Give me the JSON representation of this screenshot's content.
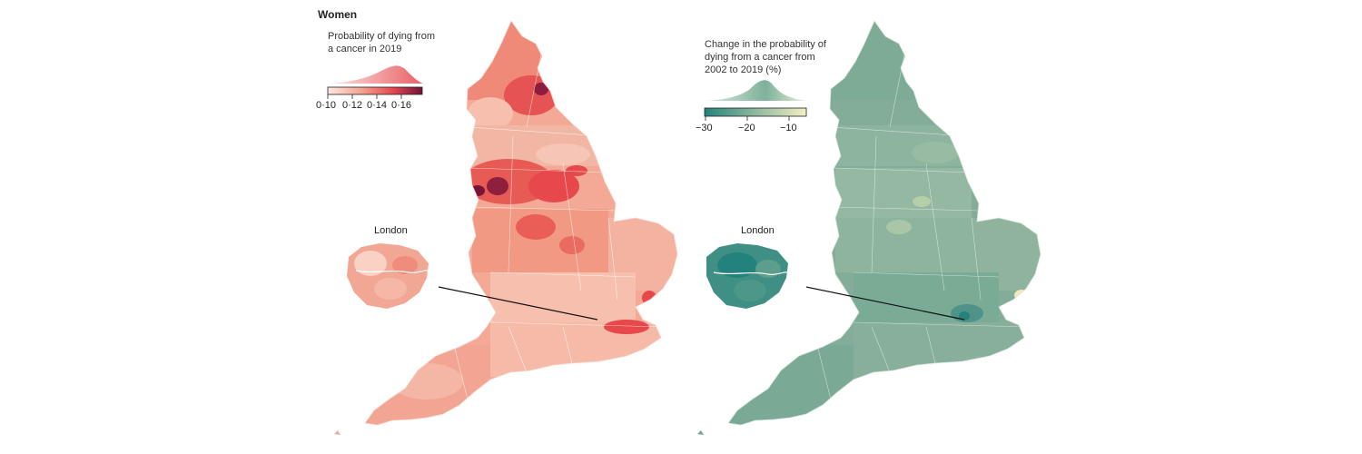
{
  "figure": {
    "title": "Women"
  },
  "left_map": {
    "legend_title_line1": "Probability of dying from",
    "legend_title_line2": "a cancer in 2019",
    "ticks": [
      "0·10",
      "0·12",
      "0·14",
      "0·16"
    ],
    "inset_label": "London",
    "colors": {
      "low": "#f6c8bb",
      "mid": "#ef7f6c",
      "high": "#e3424a",
      "extreme": "#7a1338"
    }
  },
  "right_map": {
    "legend_title_line1": "Change in the probability of",
    "legend_title_line2": "dying from a cancer from",
    "legend_title_line3": "2002 to 2019 (%)",
    "ticks": [
      "−30",
      "−20",
      "−10"
    ],
    "inset_label": "London",
    "colors": {
      "low": "#2f8a83",
      "mid": "#7aae99",
      "high": "#b9d0a8",
      "extreme": "#f1eab4"
    }
  }
}
